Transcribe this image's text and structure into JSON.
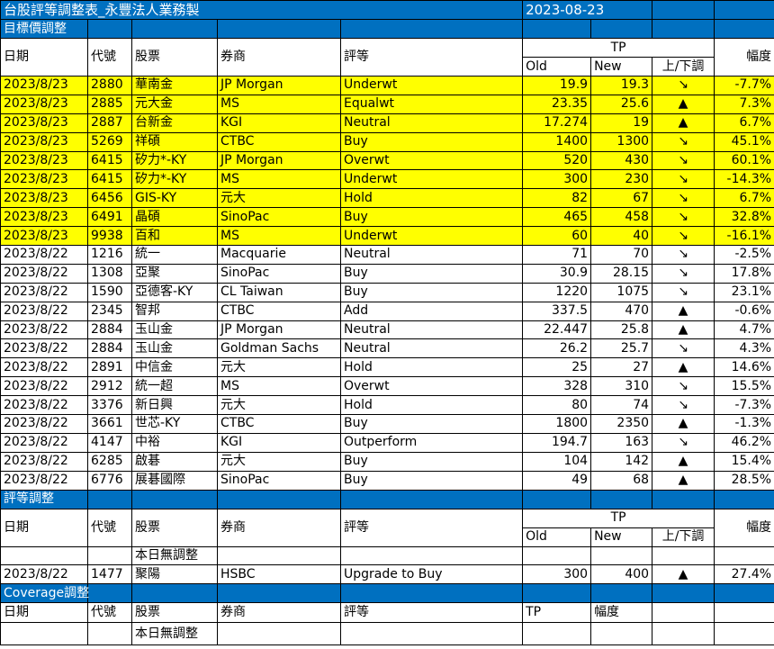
{
  "title": "台股評等調整表_永豐法人業務製",
  "date": "2023-08-23",
  "colors": {
    "header_blue": "#0070C0",
    "highlight": "#FFFF00"
  },
  "headers": {
    "date": "日期",
    "code": "代號",
    "stock": "股票",
    "broker": "券商",
    "rating": "評等",
    "tp": "TP",
    "old": "Old",
    "new": "New",
    "dir": "上/下調",
    "change": "幅度"
  },
  "sections": {
    "target_price": {
      "title": "目標價調整",
      "rows": [
        {
          "date": "2023/8/23",
          "code": "2880",
          "stock": "華南金",
          "broker": "JP Morgan",
          "rating": "Underwt",
          "old": "19.9",
          "new": "19.3",
          "dir": "↘",
          "change": "-7.7%",
          "highlight": true
        },
        {
          "date": "2023/8/23",
          "code": "2885",
          "stock": "元大金",
          "broker": "MS",
          "rating": "Equalwt",
          "old": "23.35",
          "new": "25.6",
          "dir": "▲",
          "change": "7.3%",
          "highlight": true
        },
        {
          "date": "2023/8/23",
          "code": "2887",
          "stock": "台新金",
          "broker": "KGI",
          "rating": "Neutral",
          "old": "17.274",
          "new": "19",
          "dir": "▲",
          "change": "6.7%",
          "highlight": true
        },
        {
          "date": "2023/8/23",
          "code": "5269",
          "stock": "祥碩",
          "broker": "CTBC",
          "rating": "Buy",
          "old": "1400",
          "new": "1300",
          "dir": "↘",
          "change": "45.1%",
          "highlight": true
        },
        {
          "date": "2023/8/23",
          "code": "6415",
          "stock": "矽力*-KY",
          "broker": "JP Morgan",
          "rating": "Overwt",
          "old": "520",
          "new": "430",
          "dir": "↘",
          "change": "60.1%",
          "highlight": true
        },
        {
          "date": "2023/8/23",
          "code": "6415",
          "stock": "矽力*-KY",
          "broker": "MS",
          "rating": "Underwt",
          "old": "300",
          "new": "230",
          "dir": "↘",
          "change": "-14.3%",
          "highlight": true
        },
        {
          "date": "2023/8/23",
          "code": "6456",
          "stock": "GIS-KY",
          "broker": "元大",
          "rating": "Hold",
          "old": "82",
          "new": "67",
          "dir": "↘",
          "change": "6.7%",
          "highlight": true
        },
        {
          "date": "2023/8/23",
          "code": "6491",
          "stock": "晶碩",
          "broker": "SinoPac",
          "rating": "Buy",
          "old": "465",
          "new": "458",
          "dir": "↘",
          "change": "32.8%",
          "highlight": true
        },
        {
          "date": "2023/8/23",
          "code": "9938",
          "stock": "百和",
          "broker": "MS",
          "rating": "Underwt",
          "old": "60",
          "new": "40",
          "dir": "↘",
          "change": "-16.1%",
          "highlight": true
        },
        {
          "date": "2023/8/22",
          "code": "1216",
          "stock": "統一",
          "broker": "Macquarie",
          "rating": "Neutral",
          "old": "71",
          "new": "70",
          "dir": "↘",
          "change": "-2.5%"
        },
        {
          "date": "2023/8/22",
          "code": "1308",
          "stock": "亞聚",
          "broker": "SinoPac",
          "rating": "Buy",
          "old": "30.9",
          "new": "28.15",
          "dir": "↘",
          "change": "17.8%"
        },
        {
          "date": "2023/8/22",
          "code": "1590",
          "stock": "亞德客-KY",
          "broker": "CL Taiwan",
          "rating": "Buy",
          "old": "1220",
          "new": "1075",
          "dir": "↘",
          "change": "23.1%"
        },
        {
          "date": "2023/8/22",
          "code": "2345",
          "stock": "智邦",
          "broker": "CTBC",
          "rating": "Add",
          "old": "337.5",
          "new": "470",
          "dir": "▲",
          "change": "-0.6%"
        },
        {
          "date": "2023/8/22",
          "code": "2884",
          "stock": "玉山金",
          "broker": "JP Morgan",
          "rating": "Neutral",
          "old": "22.447",
          "new": "25.8",
          "dir": "▲",
          "change": "4.7%"
        },
        {
          "date": "2023/8/22",
          "code": "2884",
          "stock": "玉山金",
          "broker": "Goldman Sachs",
          "rating": "Neutral",
          "old": "26.2",
          "new": "25.7",
          "dir": "↘",
          "change": "4.3%"
        },
        {
          "date": "2023/8/22",
          "code": "2891",
          "stock": "中信金",
          "broker": "元大",
          "rating": "Hold",
          "old": "25",
          "new": "27",
          "dir": "▲",
          "change": "14.6%"
        },
        {
          "date": "2023/8/22",
          "code": "2912",
          "stock": "統一超",
          "broker": "MS",
          "rating": "Overwt",
          "old": "328",
          "new": "310",
          "dir": "↘",
          "change": "15.5%"
        },
        {
          "date": "2023/8/22",
          "code": "3376",
          "stock": "新日興",
          "broker": "元大",
          "rating": "Hold",
          "old": "80",
          "new": "74",
          "dir": "↘",
          "change": "-7.3%"
        },
        {
          "date": "2023/8/22",
          "code": "3661",
          "stock": "世芯-KY",
          "broker": "CTBC",
          "rating": "Buy",
          "old": "1800",
          "new": "2350",
          "dir": "▲",
          "change": "-1.3%"
        },
        {
          "date": "2023/8/22",
          "code": "4147",
          "stock": "中裕",
          "broker": "KGI",
          "rating": "Outperform",
          "old": "194.7",
          "new": "163",
          "dir": "↘",
          "change": "46.2%"
        },
        {
          "date": "2023/8/22",
          "code": "6285",
          "stock": "啟碁",
          "broker": "元大",
          "rating": "Buy",
          "old": "104",
          "new": "142",
          "dir": "▲",
          "change": "15.4%"
        },
        {
          "date": "2023/8/22",
          "code": "6776",
          "stock": "展碁國際",
          "broker": "SinoPac",
          "rating": "Buy",
          "old": "49",
          "new": "68",
          "dir": "▲",
          "change": "28.5%"
        }
      ]
    },
    "rating": {
      "title": "評等調整",
      "rows": [
        {
          "date": "",
          "code": "",
          "stock": "本日無調整",
          "broker": "",
          "rating": "",
          "old": "",
          "new": "",
          "dir": "",
          "change": ""
        },
        {
          "date": "2023/8/22",
          "code": "1477",
          "stock": "聚陽",
          "broker": "HSBC",
          "rating": "Upgrade to Buy",
          "old": "300",
          "new": "400",
          "dir": "▲",
          "change": "27.4%"
        }
      ]
    },
    "coverage": {
      "title": "Coverage調整",
      "headers": {
        "tp": "TP",
        "change": "幅度"
      },
      "rows": [
        {
          "stock": "本日無調整"
        }
      ]
    }
  }
}
